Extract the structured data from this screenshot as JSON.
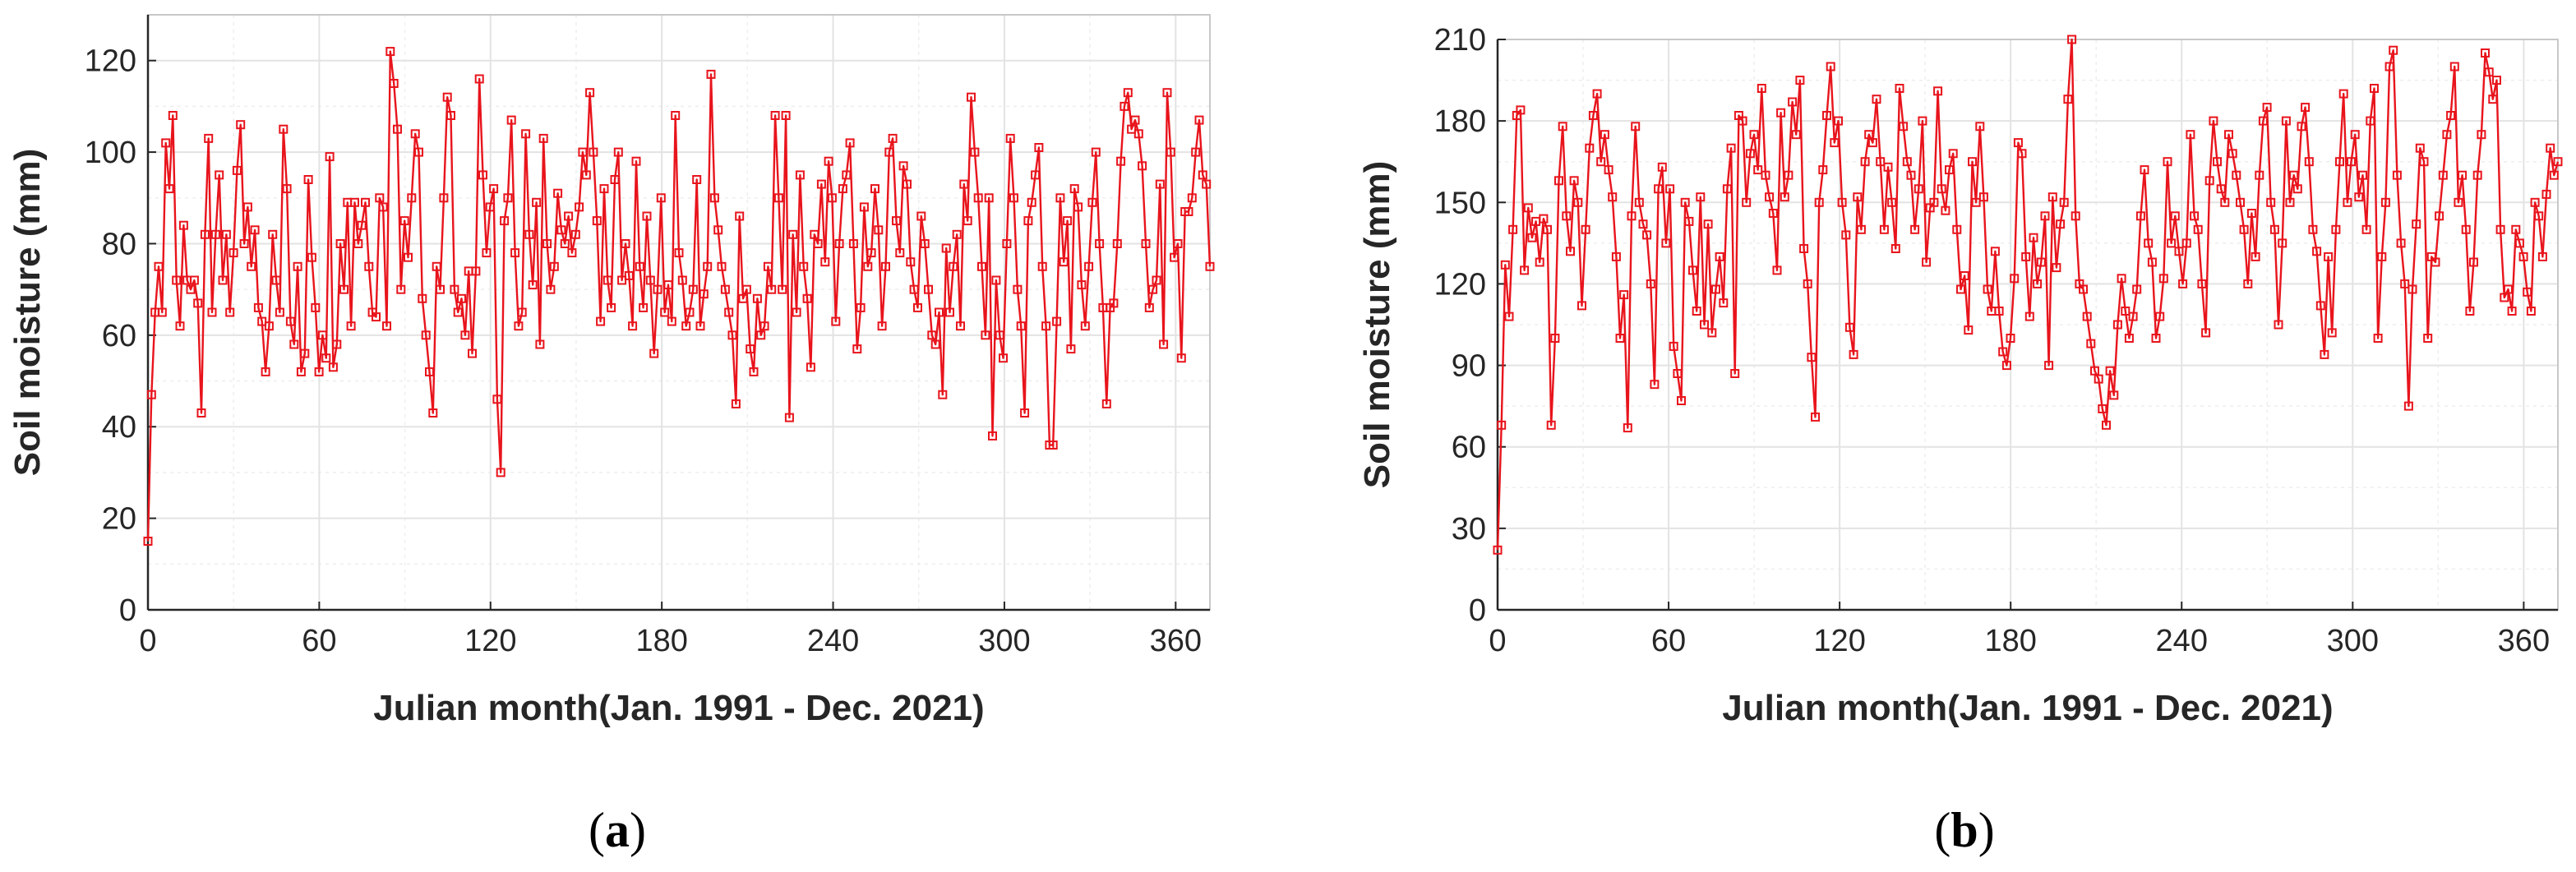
{
  "colors": {
    "series": "#e8141c",
    "grid": "#e3e3e3",
    "grid_minor": "#eeeeee",
    "axis": "#262626"
  },
  "chart_data": [
    {
      "type": "line",
      "panel_label": "a",
      "xlabel": "Julian month(Jan. 1991 - Dec. 2021)",
      "ylabel": "Soil moisture (mm)",
      "xlim": [
        0,
        372
      ],
      "ylim": [
        0,
        130
      ],
      "xticks": [
        0,
        60,
        120,
        180,
        240,
        300,
        360
      ],
      "yticks": [
        0,
        20,
        40,
        60,
        80,
        100,
        120
      ],
      "grid": true,
      "marker": "square",
      "series": [
        {
          "values": [
            15,
            47,
            65,
            75,
            65,
            102,
            92,
            108,
            72,
            62,
            84,
            72,
            70,
            72,
            67,
            43,
            82,
            103,
            65,
            82,
            95,
            72,
            82,
            65,
            78,
            96,
            106,
            80,
            88,
            75,
            83,
            66,
            63,
            52,
            62,
            82,
            72,
            65,
            105,
            92,
            63,
            58,
            75,
            52,
            56,
            94,
            77,
            66,
            52,
            60,
            55,
            99,
            53,
            58,
            80,
            70,
            89,
            62,
            89,
            80,
            84,
            89,
            75,
            65,
            64,
            90,
            88,
            62,
            122,
            115,
            105,
            70,
            85,
            77,
            90,
            104,
            100,
            68,
            60,
            52,
            43,
            75,
            70,
            90,
            112,
            108,
            70,
            65,
            68,
            60,
            74,
            56,
            74,
            116,
            95,
            78,
            88,
            92,
            46,
            30,
            85,
            90,
            107,
            78,
            62,
            65,
            104,
            82,
            71,
            89,
            58,
            103,
            80,
            70,
            75,
            91,
            83,
            80,
            86,
            78,
            82,
            88,
            100,
            95,
            113,
            100,
            85,
            63,
            92,
            72,
            66,
            94,
            100,
            72,
            80,
            73,
            62,
            98,
            75,
            66,
            86,
            72,
            56,
            70,
            90,
            65,
            71,
            63,
            108,
            78,
            72,
            62,
            65,
            70,
            94,
            62,
            69,
            75,
            117,
            90,
            83,
            75,
            70,
            65,
            60,
            45,
            86,
            68,
            70,
            57,
            52,
            68,
            60,
            62,
            75,
            70,
            108,
            90,
            70,
            108,
            42,
            82,
            65,
            95,
            75,
            68,
            53,
            82,
            80,
            93,
            76,
            98,
            90,
            63,
            80,
            92,
            95,
            102,
            80,
            57,
            66,
            88,
            75,
            78,
            92,
            83,
            62,
            75,
            100,
            103,
            85,
            78,
            97,
            93,
            76,
            70,
            66,
            86,
            80,
            70,
            60,
            58,
            65,
            47,
            79,
            65,
            75,
            82,
            62,
            93,
            85,
            112,
            100,
            90,
            75,
            60,
            90,
            38,
            72,
            60,
            55,
            80,
            103,
            90,
            70,
            62,
            43,
            85,
            89,
            95,
            101,
            75,
            62,
            36,
            36,
            63,
            90,
            76,
            85,
            57,
            92,
            88,
            71,
            62,
            75,
            89,
            100,
            80,
            66,
            45,
            66,
            67,
            80,
            98,
            110,
            113,
            105,
            107,
            104,
            97,
            80,
            66,
            70,
            72,
            93,
            58,
            113,
            100,
            77,
            80,
            55,
            87,
            87,
            90,
            100,
            107,
            95,
            93,
            75
          ]
        }
      ]
    },
    {
      "type": "line",
      "panel_label": "b",
      "xlabel": "Julian month(Jan. 1991 - Dec. 2021)",
      "ylabel": "Soil moisture (mm)",
      "xlim": [
        0,
        372
      ],
      "ylim": [
        0,
        210
      ],
      "xticks": [
        0,
        60,
        120,
        180,
        240,
        300,
        360
      ],
      "yticks": [
        0,
        30,
        60,
        90,
        120,
        150,
        180,
        210
      ],
      "grid": true,
      "marker": "square",
      "series": [
        {
          "values": [
            22,
            68,
            127,
            108,
            140,
            182,
            184,
            125,
            148,
            137,
            143,
            128,
            144,
            140,
            68,
            100,
            158,
            178,
            145,
            132,
            158,
            150,
            112,
            140,
            170,
            182,
            190,
            165,
            175,
            162,
            152,
            130,
            100,
            116,
            67,
            145,
            178,
            150,
            142,
            138,
            120,
            83,
            155,
            163,
            135,
            155,
            97,
            87,
            77,
            150,
            143,
            125,
            110,
            152,
            105,
            142,
            102,
            118,
            130,
            113,
            155,
            170,
            87,
            182,
            180,
            150,
            168,
            175,
            162,
            192,
            160,
            152,
            146,
            125,
            183,
            152,
            160,
            187,
            175,
            195,
            133,
            120,
            93,
            71,
            150,
            162,
            182,
            200,
            172,
            180,
            150,
            138,
            104,
            94,
            152,
            140,
            165,
            175,
            172,
            188,
            165,
            140,
            163,
            150,
            133,
            192,
            178,
            165,
            160,
            140,
            155,
            180,
            128,
            148,
            150,
            191,
            155,
            147,
            162,
            168,
            140,
            118,
            123,
            103,
            165,
            150,
            178,
            152,
            118,
            110,
            132,
            110,
            95,
            90,
            100,
            122,
            172,
            168,
            130,
            108,
            137,
            120,
            128,
            145,
            90,
            152,
            126,
            142,
            150,
            188,
            210,
            145,
            120,
            118,
            108,
            98,
            88,
            85,
            74,
            68,
            88,
            79,
            105,
            122,
            110,
            100,
            108,
            118,
            145,
            162,
            135,
            128,
            100,
            108,
            122,
            165,
            135,
            145,
            132,
            120,
            135,
            175,
            145,
            140,
            120,
            102,
            158,
            180,
            165,
            155,
            150,
            175,
            168,
            160,
            150,
            140,
            120,
            146,
            130,
            160,
            180,
            185,
            150,
            140,
            105,
            135,
            180,
            150,
            160,
            155,
            178,
            185,
            165,
            140,
            132,
            112,
            94,
            130,
            102,
            140,
            165,
            190,
            150,
            165,
            175,
            152,
            160,
            140,
            180,
            192,
            100,
            130,
            150,
            200,
            206,
            160,
            135,
            120,
            75,
            118,
            142,
            170,
            165,
            100,
            130,
            128,
            145,
            160,
            175,
            182,
            200,
            150,
            160,
            140,
            110,
            128,
            160,
            175,
            205,
            198,
            188,
            195,
            140,
            115,
            118,
            110,
            140,
            135,
            130,
            117,
            110,
            150,
            145,
            130,
            153,
            170,
            160,
            165
          ]
        }
      ]
    }
  ]
}
